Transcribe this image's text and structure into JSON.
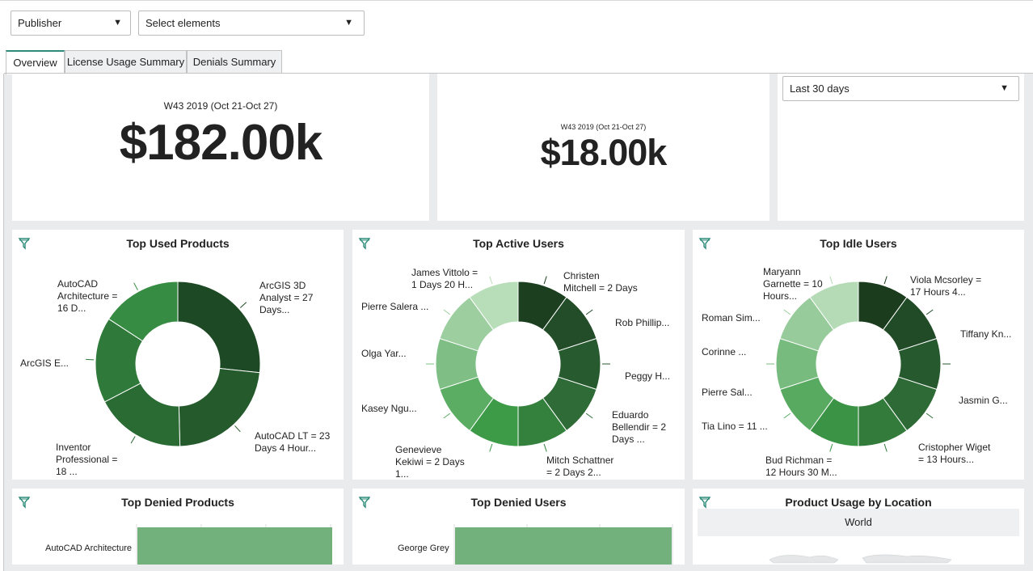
{
  "filters": {
    "publisher": "Publisher",
    "elements": "Select elements",
    "date_range": "Last 30 days"
  },
  "tabs": [
    "Overview",
    "License Usage Summary",
    "Denials Summary"
  ],
  "kpi": [
    {
      "subtitle": "W43 2019 (Oct 21-Oct 27)",
      "value": "$182.00k"
    },
    {
      "subtitle": "W43 2019 (Oct 21-Oct 27)",
      "value": "$18.00k"
    }
  ],
  "panels": {
    "top_used_products": {
      "title": "Top Used Products",
      "labels": [
        "ArcGIS 3D\nAnalyst = 27\nDays...",
        "AutoCAD LT = 23\nDays 4 Hour...",
        "Inventor\nProfessional =\n18 ...",
        "ArcGIS E...",
        "AutoCAD\nArchitecture =\n16 D..."
      ]
    },
    "top_active_users": {
      "title": "Top Active Users",
      "labels": [
        "Christen\nMitchell = 2 Days",
        "Rob Phillip...",
        "Peggy H...",
        "Eduardo\nBellendir = 2\nDays ...",
        "Mitch Schattner\n= 2 Days 2...",
        "Genevieve\nKekiwi = 2 Days\n1...",
        "Kasey Ngu...",
        "Olga Yar...",
        "Pierre Salera ...",
        "James Vittolo =\n1 Days 20 H..."
      ]
    },
    "top_idle_users": {
      "title": "Top Idle Users",
      "labels": [
        "Viola Mcsorley =\n17 Hours 4...",
        "Tiffany Kn...",
        "Jasmin G...",
        "Cristopher Wiget\n= 13 Hours...",
        "Bud Richman =\n12 Hours 30 M...",
        "Tia Lino = 11 ...",
        "Pierre Sal...",
        "Corinne ...",
        "Roman Sim...",
        "Maryann\nGarnette = 10\nHours..."
      ]
    },
    "top_denied_products": {
      "title": "Top Denied Products",
      "bar_label": "AutoCAD Architecture"
    },
    "top_denied_users": {
      "title": "Top Denied Users",
      "bar_label": "George Grey"
    },
    "product_usage_by_location": {
      "title": "Product Usage by Location",
      "region": "World"
    }
  },
  "chart_data": [
    {
      "type": "pie",
      "title": "Top Used Products",
      "categories": [
        "ArcGIS 3D Analyst",
        "AutoCAD LT",
        "Inventor Professional",
        "ArcGIS E...",
        "AutoCAD Architecture"
      ],
      "values": [
        27.0,
        23.17,
        18.0,
        17.0,
        16.0
      ],
      "colors": [
        "#1d4a25",
        "#245a2c",
        "#2a6a33",
        "#2f7a3a",
        "#378c43"
      ]
    },
    {
      "type": "pie",
      "title": "Top Active Users",
      "categories": [
        "Christen Mitchell",
        "Rob Phillip...",
        "Peggy H...",
        "Eduardo Bellendir",
        "Mitch Schattner",
        "Genevieve Kekiwi",
        "Kasey Ngu...",
        "Olga Yar...",
        "Pierre Salera ...",
        "James Vittolo"
      ],
      "values": [
        1,
        1,
        1,
        1,
        1,
        1,
        1,
        1,
        1,
        1
      ],
      "colors": [
        "#1c3f1f",
        "#224d28",
        "#285a2f",
        "#2e6b36",
        "#34803d",
        "#3d9b48",
        "#5aad62",
        "#7fbf85",
        "#9cce9f",
        "#b8ddb9"
      ]
    },
    {
      "type": "pie",
      "title": "Top Idle Users",
      "categories": [
        "Viola Mcsorley",
        "Tiffany Kn...",
        "Jasmin G...",
        "Cristopher Wiget",
        "Bud Richman",
        "Tia Lino",
        "Pierre Sal...",
        "Corinne ...",
        "Roman Sim...",
        "Maryann Garnette"
      ],
      "values": [
        1,
        1,
        1,
        1,
        1,
        1,
        1,
        1,
        1,
        1
      ],
      "colors": [
        "#1b3d1e",
        "#214b27",
        "#27592e",
        "#2d6a35",
        "#327b3b",
        "#3b9446",
        "#57aa5f",
        "#78bb7e",
        "#98cb9b",
        "#b5dbb6"
      ]
    },
    {
      "type": "bar",
      "title": "Top Denied Products",
      "categories": [
        "AutoCAD Architecture"
      ],
      "values": [
        1
      ]
    },
    {
      "type": "bar",
      "title": "Top Denied Users",
      "categories": [
        "George Grey"
      ],
      "values": [
        1
      ]
    }
  ]
}
